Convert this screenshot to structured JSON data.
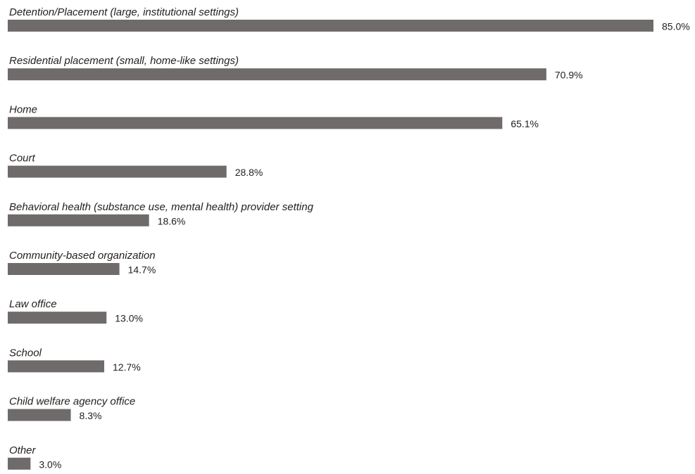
{
  "chart_data": {
    "type": "bar",
    "orientation": "horizontal",
    "title": "",
    "xlabel": "",
    "ylabel": "",
    "xlim": [
      0,
      85
    ],
    "grid": false,
    "legend": "none",
    "bar_color": "#6f6b6b",
    "categories": [
      "Detention/Placement (large, institutional settings)",
      "Residential placement (small, home-like settings)",
      "Home",
      "Court",
      "Behavioral health (substance use, mental health) provider setting",
      "Community-based organization",
      "Law office",
      "School",
      "Child welfare agency office",
      "Other"
    ],
    "values": [
      85.0,
      70.9,
      65.1,
      28.8,
      18.6,
      14.7,
      13.0,
      12.7,
      8.3,
      3.0
    ],
    "value_labels": [
      "85.0%",
      "70.9%",
      "65.1%",
      "28.8%",
      "18.6%",
      "14.7%",
      "13.0%",
      "12.7%",
      "8.3%",
      "3.0%"
    ]
  }
}
